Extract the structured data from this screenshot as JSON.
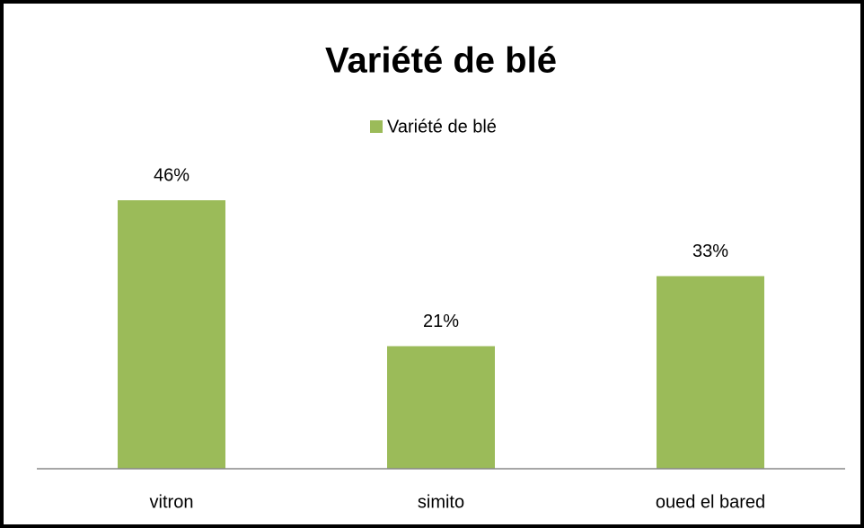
{
  "chart_data": {
    "type": "bar",
    "title": "Variété de blé",
    "categories": [
      "vitron",
      "simito",
      "oued el bared"
    ],
    "series": [
      {
        "name": "Variété de blé",
        "color": "#9bbb59",
        "values": [
          46,
          21,
          33
        ],
        "value_labels": [
          "46%",
          "21%",
          "33%"
        ]
      }
    ],
    "legend": "top"
  }
}
